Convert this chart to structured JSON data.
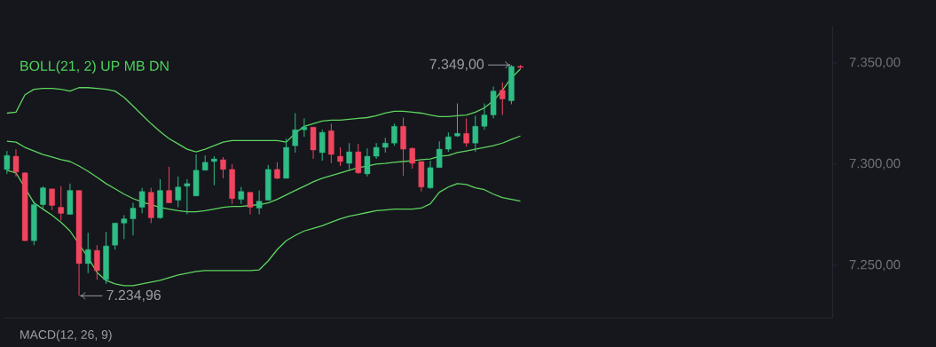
{
  "chart_data": {
    "type": "candlestick",
    "title": "BOLL(21, 2) UP MB DN",
    "categories": [
      null,
      null,
      null,
      null,
      null,
      null,
      null,
      null,
      null,
      null,
      null,
      null,
      null,
      null,
      null,
      null,
      null,
      null,
      null,
      null,
      null,
      null,
      null,
      null,
      null,
      null,
      null,
      null,
      null,
      null,
      null,
      null,
      null,
      null,
      null,
      null,
      null,
      null,
      null,
      null,
      null,
      null,
      null,
      null,
      null,
      null,
      null,
      null,
      null,
      null,
      null,
      null,
      null,
      null,
      null,
      null,
      null,
      null
    ],
    "ylim": [
      7224,
      7368
    ],
    "yticks": [
      {
        "value": 7250,
        "label": "7.250,00"
      },
      {
        "value": 7300,
        "label": "7.300,00"
      },
      {
        "value": 7350,
        "label": "7.350,00"
      }
    ],
    "tick_labels": "y",
    "annotations": [
      "7.349,00",
      "7.234,96",
      "MACD(12, 26, 9)"
    ],
    "series": [
      {
        "type": "line",
        "color": "#5ed45e",
        "values": [
          7325.2,
          7325.7,
          7334.3,
          7337.0,
          7337.4,
          7337.4,
          7337.0,
          7336.1,
          7337.8,
          7337.8,
          7337.4,
          7337.0,
          7336.1,
          7333.0,
          7328.7,
          7324.3,
          7320.0,
          7316.1,
          7312.6,
          7310.0,
          7307.4,
          7306.1,
          7307.4,
          7309.1,
          7310.9,
          7311.7,
          7311.7,
          7311.7,
          7311.7,
          7311.7,
          7311.7,
          7310.9,
          7315.2,
          7318.7,
          7320.0,
          7321.3,
          7321.7,
          7321.7,
          7322.2,
          7322.6,
          7323.0,
          7323.9,
          7325.2,
          7326.1,
          7326.1,
          7325.7,
          7325.2,
          7324.3,
          7323.5,
          7323.5,
          7323.9,
          7324.3,
          7325.7,
          7327.8,
          7331.3,
          7336.5,
          7342.6,
          7347.0
        ]
      },
      {
        "type": "line",
        "color": "#5fd45e",
        "values": [
          7311.3,
          7310.9,
          7308.3,
          7306.5,
          7304.8,
          7303.5,
          7302.2,
          7301.3,
          7299.1,
          7296.5,
          7293.5,
          7290.4,
          7287.8,
          7285.2,
          7283.0,
          7281.3,
          7280.0,
          7278.7,
          7277.8,
          7277.0,
          7276.5,
          7276.5,
          7277.0,
          7277.8,
          7278.7,
          7279.1,
          7279.1,
          7279.6,
          7280.0,
          7280.9,
          7282.6,
          7284.8,
          7287.0,
          7289.1,
          7291.3,
          7293.0,
          7294.3,
          7295.7,
          7297.0,
          7298.3,
          7299.1,
          7300.0,
          7300.4,
          7300.9,
          7301.3,
          7301.7,
          7302.2,
          7302.6,
          7303.9,
          7304.3,
          7305.7,
          7306.5,
          7307.4,
          7308.3,
          7309.1,
          7310.4,
          7312.2,
          7313.9
        ]
      },
      {
        "type": "line",
        "color": "#5ed55e",
        "values": [
          7297.0,
          7295.7,
          null,
          7280.9,
          7277.8,
          7274.8,
          7271.3,
          7267.0,
          null,
          7253.9,
          7246.5,
          7242.6,
          7240.9,
          7240.0,
          7240.0,
          7240.9,
          7241.7,
          7242.6,
          7243.9,
          7245.2,
          7246.1,
          7247.0,
          7247.4,
          7247.4,
          7247.4,
          7247.4,
          7247.4,
          7247.4,
          7247.8,
          7252.2,
          7257.8,
          7262.2,
          7264.8,
          7267.0,
          7268.3,
          7269.6,
          7271.3,
          7273.0,
          7274.3,
          7275.2,
          7276.1,
          7277.0,
          7277.4,
          7277.8,
          7277.8,
          7277.8,
          7278.3,
          7280.4,
          7286.1,
          7288.7,
          7290.4,
          7290.0,
          7288.3,
          7287.4,
          7285.2,
          7283.5,
          7282.6,
          7281.7
        ]
      },
      {
        "colors": [
          "#2ebd85",
          "#f0455f",
          "#f0455f",
          "#2ebd85",
          "#2ebd85",
          "#f0455f",
          "#f0455f",
          "#2ebd85",
          "#f0455f",
          "#2ebd85",
          "#f0455f",
          "#2ebd85",
          "#2ebd85",
          "#2ebd85",
          "#2ebd85",
          "#2ebd85",
          "#f0455f",
          "#2ebd85",
          "#f0455f",
          "#2ebd85",
          "#2ebd85",
          "#2ebd85",
          "#2ebd85",
          "#2ebd85",
          "#f0455f",
          "#f0455f",
          "#2ebd85",
          "#f0455f",
          "#2ebd85",
          "#2ebd85",
          "#f0455f",
          "#2ebd85",
          "#2ebd85",
          "#2ebd85",
          "#f0455f",
          "#2ebd85",
          "#f0455f",
          "#f0455f",
          "#2ebd85",
          "#f0455f",
          "#2ebd85",
          "#2ebd85",
          "#2ebd85",
          "#2ebd85",
          "#f0455f",
          "#f0455f",
          "#f0455f",
          "#2ebd85",
          "#2ebd85",
          "#2ebd85",
          "#2ebd85",
          "#f0455f",
          "#2ebd85",
          "#2ebd85",
          "#2ebd85",
          "#f0455f",
          "#2ebd85",
          "#f0455f"
        ],
        "ohlc": [
          [
            7297.4,
            7306.5,
            7295.2,
            7304.3
          ],
          [
            7303.9,
            7307.4,
            7293.9,
            7296.1
          ],
          [
            7295.7,
            7296.1,
            7262.0,
            7262.2
          ],
          [
            7262.2,
            7281.7,
            7260.0,
            7280.0
          ],
          [
            7280.0,
            7289.1,
            7277.4,
            7288.3
          ],
          [
            7287.8,
            7287.8,
            7277.4,
            7279.6
          ],
          [
            7278.7,
            7289.1,
            7272.2,
            7275.7
          ],
          [
            7275.2,
            7290.4,
            7275.2,
            7287.0
          ],
          [
            7287.0,
            7287.0,
            7234.96,
            7250.9
          ],
          [
            7250.9,
            7266.1,
            7246.1,
            7257.8
          ],
          [
            7257.4,
            7260.0,
            7243.0,
            7247.4
          ],
          [
            7243.0,
            7266.5,
            7240.9,
            7259.6
          ],
          [
            7260.0,
            7270.9,
            7257.8,
            7270.9
          ],
          [
            7270.9,
            7274.8,
            7263.0,
            7273.0
          ],
          [
            7273.0,
            7280.9,
            7264.8,
            7278.3
          ],
          [
            7278.7,
            7288.3,
            7275.7,
            7286.5
          ],
          [
            7286.1,
            7288.3,
            7270.9,
            7273.5
          ],
          [
            7273.5,
            7292.6,
            7273.0,
            7287.0
          ],
          [
            7287.0,
            7298.7,
            7280.9,
            7280.9
          ],
          [
            7282.2,
            7293.9,
            7278.7,
            7288.7
          ],
          [
            7289.1,
            7292.6,
            7275.2,
            7290.4
          ],
          [
            7284.3,
            7304.8,
            7284.3,
            7297.0
          ],
          [
            7297.0,
            7304.3,
            7297.0,
            7300.9
          ],
          [
            7301.3,
            7303.9,
            7289.6,
            7302.6
          ],
          [
            7302.2,
            7303.5,
            7293.0,
            7297.4
          ],
          [
            7297.4,
            7300.0,
            7280.4,
            7283.0
          ],
          [
            7282.6,
            7288.7,
            7280.4,
            7286.5
          ],
          [
            7286.1,
            7286.1,
            7275.2,
            7278.7
          ],
          [
            7278.3,
            7287.0,
            7275.2,
            7281.7
          ],
          [
            7282.2,
            7299.6,
            7282.2,
            7297.4
          ],
          [
            7297.4,
            7300.9,
            7292.6,
            7293.0
          ],
          [
            7293.0,
            7312.6,
            7293.0,
            7308.3
          ],
          [
            7309.1,
            7325.2,
            7305.7,
            7317.0
          ],
          [
            7317.0,
            7322.6,
            7313.5,
            7318.3
          ],
          [
            7318.3,
            7318.3,
            7302.6,
            7307.0
          ],
          [
            7305.7,
            7317.0,
            7301.7,
            7315.7
          ],
          [
            7316.5,
            7320.0,
            7300.4,
            7304.8
          ],
          [
            7303.9,
            7308.3,
            7299.1,
            7301.3
          ],
          [
            7300.4,
            7310.4,
            7297.4,
            7306.1
          ],
          [
            7306.1,
            7310.0,
            7295.2,
            7295.7
          ],
          [
            7295.2,
            7307.8,
            7293.9,
            7303.9
          ],
          [
            7303.9,
            7310.4,
            7302.6,
            7308.3
          ],
          [
            7308.3,
            7313.0,
            7305.7,
            7310.4
          ],
          [
            7310.4,
            7320.0,
            7309.1,
            7318.7
          ],
          [
            7318.7,
            7323.0,
            7294.3,
            7307.4
          ],
          [
            7307.8,
            7308.3,
            7297.8,
            7300.4
          ],
          [
            7301.3,
            7301.3,
            7286.5,
            7288.7
          ],
          [
            7288.3,
            7301.7,
            7287.8,
            7298.3
          ],
          [
            7298.3,
            7311.3,
            7298.3,
            7307.4
          ],
          [
            7307.4,
            7315.7,
            7306.1,
            7313.5
          ],
          [
            7313.9,
            7330.0,
            7313.5,
            7315.2
          ],
          [
            7315.2,
            7322.6,
            7308.7,
            7310.4
          ],
          [
            7310.4,
            7323.9,
            7306.1,
            7318.7
          ],
          [
            7318.7,
            7330.0,
            7317.0,
            7324.3
          ],
          [
            7324.3,
            7338.3,
            7322.6,
            7336.1
          ],
          [
            7336.5,
            7340.4,
            7324.3,
            7332.2
          ],
          [
            7331.3,
            7349.0,
            7329.6,
            7348.3
          ],
          [
            7348.3,
            7349.0,
            7347.0,
            7347.8
          ]
        ]
      }
    ]
  }
}
